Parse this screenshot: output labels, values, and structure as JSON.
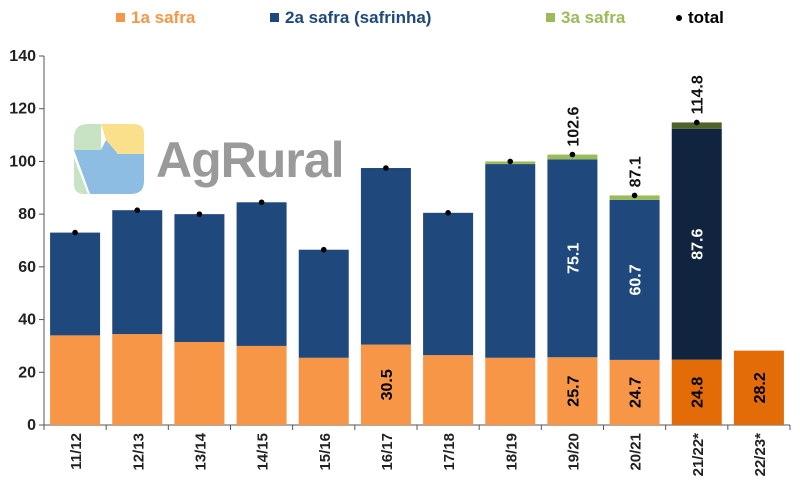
{
  "colors": {
    "s1": "#f79646",
    "s2": "#1f497d",
    "s3": "#9bbb59",
    "total": "#000000",
    "highlight_s1": "#e36c09",
    "highlight_s2": "#10243f",
    "highlight_s3": "#4f6228",
    "s1_legend_text": "#f79646",
    "s2_legend_text": "#1f497d",
    "s3_legend_text": "#9bbb59",
    "total_legend_text": "#000000"
  },
  "logo": {
    "text": "AgRural"
  },
  "chart_data": {
    "type": "bar",
    "stacked": true,
    "categories": [
      "11/12",
      "12/13",
      "13/14",
      "14/15",
      "15/16",
      "16/17",
      "17/18",
      "18/19",
      "19/20",
      "20/21",
      "21/22*",
      "22/23*"
    ],
    "series": [
      {
        "name": "1a safra",
        "values": [
          34.0,
          34.5,
          31.5,
          30.0,
          25.5,
          30.5,
          26.5,
          25.5,
          25.7,
          24.7,
          24.8,
          28.2
        ]
      },
      {
        "name": "2a safra (safrinha)",
        "values": [
          39.0,
          47.0,
          48.5,
          54.5,
          41.0,
          67.0,
          54.0,
          73.5,
          75.1,
          60.7,
          87.6,
          0
        ]
      },
      {
        "name": "3a safra",
        "values": [
          0,
          0,
          0,
          0,
          0,
          0,
          0,
          1.0,
          1.8,
          1.7,
          2.4,
          0
        ]
      }
    ],
    "totals": [
      73.0,
      81.5,
      80.0,
      84.5,
      66.5,
      97.5,
      80.5,
      100.0,
      102.6,
      87.1,
      114.8,
      null
    ],
    "total_legend": "total",
    "highlight_categories": [
      "21/22*",
      "22/23*"
    ],
    "s1_labels": [
      {
        "category": "16/17",
        "text": "30.5"
      },
      {
        "category": "19/20",
        "text": "25.7"
      },
      {
        "category": "20/21",
        "text": "24.7"
      },
      {
        "category": "21/22*",
        "text": "24.8"
      },
      {
        "category": "22/23*",
        "text": "28.2"
      }
    ],
    "s2_labels": [
      {
        "category": "19/20",
        "text": "75.1"
      },
      {
        "category": "20/21",
        "text": "60.7"
      },
      {
        "category": "21/22*",
        "text": "87.6"
      }
    ],
    "total_labels": [
      {
        "category": "19/20",
        "text": "102.6"
      },
      {
        "category": "20/21",
        "text": "87.1"
      },
      {
        "category": "21/22*",
        "text": "114.8"
      }
    ],
    "y_ticks": [
      "0",
      "20",
      "40",
      "60",
      "80",
      "100",
      "120",
      "140"
    ],
    "ylim": [
      0,
      140
    ],
    "grid": false,
    "legend_position": "top"
  }
}
